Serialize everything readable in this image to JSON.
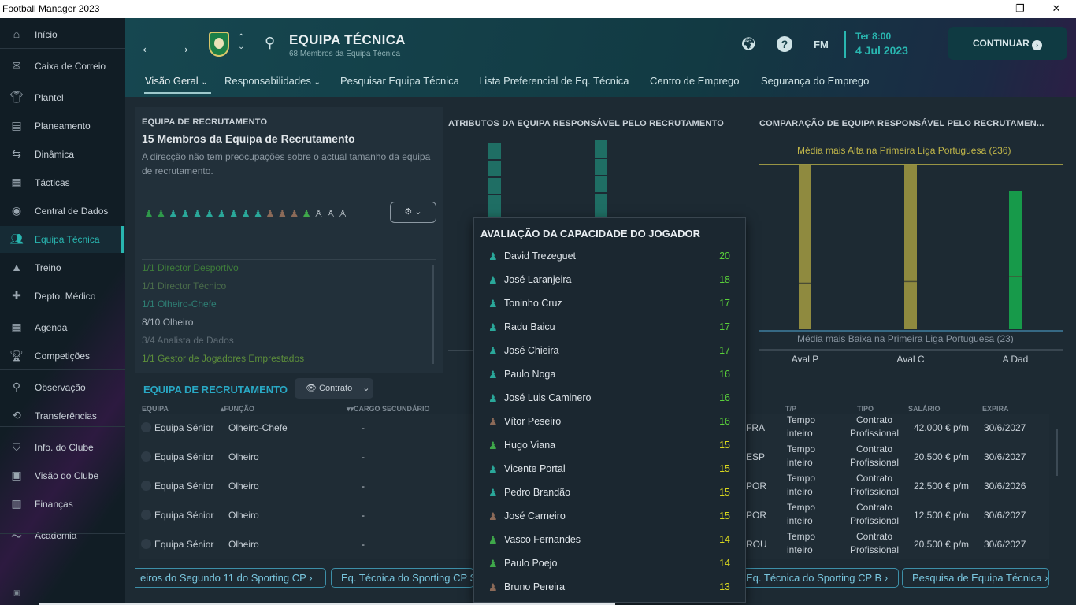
{
  "window": {
    "title": "Football Manager 2023"
  },
  "sidebar": {
    "items": [
      {
        "label": "Início",
        "icon": "home-icon"
      },
      {
        "label": "Caixa de Correio",
        "icon": "inbox-icon"
      },
      {
        "label": "Plantel",
        "icon": "shirt-icon"
      },
      {
        "label": "Planeamento",
        "icon": "clipboard-icon"
      },
      {
        "label": "Dinâmica",
        "icon": "dynamics-icon"
      },
      {
        "label": "Tácticas",
        "icon": "tactics-icon"
      },
      {
        "label": "Central de Dados",
        "icon": "data-icon"
      },
      {
        "label": "Equipa Técnica",
        "icon": "staff-icon"
      },
      {
        "label": "Treino",
        "icon": "cone-icon"
      },
      {
        "label": "Depto. Médico",
        "icon": "medical-icon"
      },
      {
        "label": "Agenda",
        "icon": "calendar-icon"
      },
      {
        "label": "Competições",
        "icon": "trophy-icon"
      },
      {
        "label": "Observação",
        "icon": "magnifier-icon"
      },
      {
        "label": "Transferências",
        "icon": "transfer-icon"
      },
      {
        "label": "Info. do Clube",
        "icon": "shield-icon"
      },
      {
        "label": "Visão do Clube",
        "icon": "briefcase-icon"
      },
      {
        "label": "Finanças",
        "icon": "money-icon"
      },
      {
        "label": "Academia",
        "icon": "academy-icon"
      }
    ],
    "active_index": 7
  },
  "header": {
    "title": "EQUIPA TÉCNICA",
    "subtitle": "68 Membros da Equipa Técnica",
    "fm_label": "FM",
    "date_day": "Ter 8:00",
    "date_full": "4 Jul 2023",
    "continue_label": "CONTINUAR"
  },
  "tabs": [
    {
      "label": "Visão Geral",
      "dropdown": true
    },
    {
      "label": "Responsabilidades",
      "dropdown": true
    },
    {
      "label": "Pesquisar Equipa Técnica"
    },
    {
      "label": "Lista Preferencial de Eq. Técnica"
    },
    {
      "label": "Centro de Emprego"
    },
    {
      "label": "Segurança do Emprego"
    }
  ],
  "recruitment_panel": {
    "section_label": "EQUIPA DE RECRUTAMENTO",
    "heading": "15 Membros da Equipa de Recrutamento",
    "description": "A direcção não tem preocupações sobre o actual tamanho da equipa de recrutamento.",
    "roles": [
      {
        "text": "1/1 Director Desportivo",
        "color": "#3f7d3a"
      },
      {
        "text": "1/1 Director Técnico",
        "color": "#4a6c4a"
      },
      {
        "text": "1/1 Olheiro-Chefe",
        "color": "#2e7f74"
      },
      {
        "text": "8/10 Olheiro",
        "color": "#a7b1ba"
      },
      {
        "text": "3/4 Analista de Dados",
        "color": "#5e6b74"
      },
      {
        "text": "1/1 Gestor de Jogadores Emprestados",
        "color": "#5d8f3a"
      }
    ]
  },
  "attributes_chart": {
    "title": "ATRIBUTOS DA EQUIPA RESPONSÁVEL PELO RECRUTAMENTO"
  },
  "comparison_chart": {
    "title": "COMPARAÇÃO DE EQUIPA RESPONSÁVEL PELO RECRUTAMEN...",
    "high_label": "Média mais Alta na Primeira Liga Portuguesa (236)",
    "low_label": "Média mais Baixa na Primeira Liga Portuguesa (23)",
    "bars": [
      {
        "label": "Aval P",
        "level": 1.0,
        "color": "#8f8a3f",
        "marker": 0.28
      },
      {
        "label": "Aval C",
        "level": 1.0,
        "color": "#8f8a3f",
        "marker": 0.29
      },
      {
        "label": "A Dad",
        "level": 0.84,
        "color": "#179a4a",
        "marker": 0.32
      }
    ]
  },
  "table": {
    "section_label": "EQUIPA DE RECRUTAMENTO",
    "view_label": "Contrato",
    "headers": {
      "team": "EQUIPA",
      "role": "FUNÇÃO",
      "secondary": "CARGO SECUNDÁRIO",
      "tp": "T/P",
      "type": "TIPO",
      "salary": "SALÁRIO",
      "expires": "EXPIRA"
    },
    "rows": [
      {
        "team": "Equipa Sénior",
        "role": "Olheiro-Chefe",
        "secondary": "-",
        "nat": "FRA",
        "tp1": "Tempo",
        "tp2": "inteiro",
        "type1": "Contrato",
        "type2": "Profissional",
        "salary": "42.000 € p/m",
        "expires": "30/6/2027"
      },
      {
        "team": "Equipa Sénior",
        "role": "Olheiro",
        "secondary": "-",
        "nat": "ESP",
        "tp1": "Tempo",
        "tp2": "inteiro",
        "type1": "Contrato",
        "type2": "Profissional",
        "salary": "20.500 € p/m",
        "expires": "30/6/2027"
      },
      {
        "team": "Equipa Sénior",
        "role": "Olheiro",
        "secondary": "-",
        "nat": "POR",
        "tp1": "Tempo",
        "tp2": "inteiro",
        "type1": "Contrato",
        "type2": "Profissional",
        "salary": "22.500 € p/m",
        "expires": "30/6/2026"
      },
      {
        "team": "Equipa Sénior",
        "role": "Olheiro",
        "secondary": "-",
        "nat": "POR",
        "tp1": "Tempo",
        "tp2": "inteiro",
        "type1": "Contrato",
        "type2": "Profissional",
        "salary": "12.500 € p/m",
        "expires": "30/6/2027"
      },
      {
        "team": "Equipa Sénior",
        "role": "Olheiro",
        "secondary": "-",
        "nat": "ROU",
        "tp1": "Tempo",
        "tp2": "inteiro",
        "type1": "Contrato",
        "type2": "Profissional",
        "salary": "20.500 € p/m",
        "expires": "30/6/2027"
      }
    ]
  },
  "bottom_links": [
    {
      "label": "eiros do Segundo 11 do Sporting CP"
    },
    {
      "label": "Eq. Técnica do Sporting CP S"
    },
    {
      "label": "Eq. Técnica do Sporting CP B"
    },
    {
      "label": "Pesquisa de Equipa Técnica"
    }
  ],
  "popup": {
    "title": "AVALIAÇÃO DA CAPACIDADE DO JOGADOR",
    "rows": [
      {
        "name": "David Trezeguet",
        "value": "20",
        "icon_color": "#2aa89a"
      },
      {
        "name": "José Laranjeira",
        "value": "18",
        "icon_color": "#2aa89a"
      },
      {
        "name": "Toninho Cruz",
        "value": "17",
        "icon_color": "#2aa89a"
      },
      {
        "name": "Radu Baicu",
        "value": "17",
        "icon_color": "#2aa89a"
      },
      {
        "name": "José Chieira",
        "value": "17",
        "icon_color": "#2aa89a"
      },
      {
        "name": "Paulo Noga",
        "value": "16",
        "icon_color": "#2aa89a"
      },
      {
        "name": "José Luis Caminero",
        "value": "16",
        "icon_color": "#2aa89a"
      },
      {
        "name": "Vítor Peseiro",
        "value": "16",
        "icon_color": "#8c6a58"
      },
      {
        "name": "Hugo Viana",
        "value": "15",
        "icon_color": "#3fa84a"
      },
      {
        "name": "Vicente Portal",
        "value": "15",
        "icon_color": "#2aa89a"
      },
      {
        "name": "Pedro Brandão",
        "value": "15",
        "icon_color": "#2aa89a"
      },
      {
        "name": "José Carneiro",
        "value": "15",
        "icon_color": "#8c6a58"
      },
      {
        "name": "Vasco Fernandes",
        "value": "14",
        "icon_color": "#3fa84a"
      },
      {
        "name": "Paulo Poejo",
        "value": "14",
        "icon_color": "#3fa84a"
      },
      {
        "name": "Bruno Pereira",
        "value": "13",
        "icon_color": "#8c6a58"
      }
    ]
  },
  "colors": {
    "accent": "#29b6b0",
    "value_green": "#5ad13a",
    "value_yellow": "#d8d71e"
  }
}
